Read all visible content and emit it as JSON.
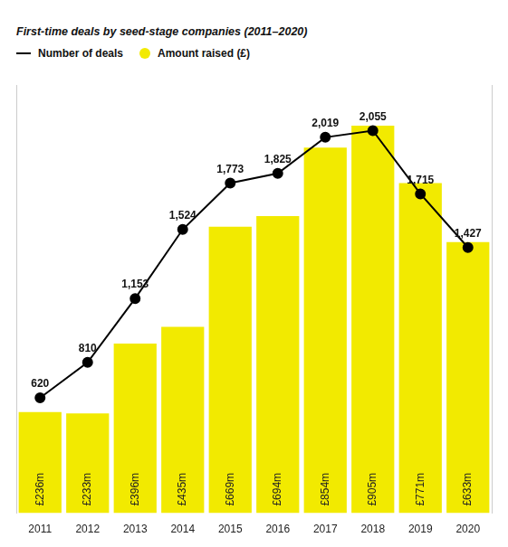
{
  "chart_data": {
    "type": "bar",
    "title": "First-time deals by seed-stage companies (2011–2020)",
    "categories": [
      "2011",
      "2012",
      "2013",
      "2014",
      "2015",
      "2016",
      "2017",
      "2018",
      "2019",
      "2020"
    ],
    "series": [
      {
        "name": "Number of deals",
        "type": "line",
        "color": "#000000",
        "marker": "circle",
        "axis": "y2",
        "values": [
          620,
          810,
          1153,
          1524,
          1773,
          1825,
          2019,
          2055,
          1715,
          1427
        ],
        "value_labels": [
          "620",
          "810",
          "1,153",
          "1,524",
          "1,773",
          "1,825",
          "2,019",
          "2,055",
          "1,715",
          "1,427"
        ]
      },
      {
        "name": "Amount raised (£)",
        "type": "bar",
        "color": "#f2ea00",
        "values": [
          236,
          233,
          396,
          435,
          669,
          694,
          854,
          905,
          771,
          633
        ],
        "value_labels": [
          "£236m",
          "£233m",
          "£396m",
          "£435m",
          "£669m",
          "£694m",
          "£854m",
          "£905m",
          "£771m",
          "£633m"
        ]
      }
    ],
    "ylim": [
      0,
      1000
    ],
    "y2lim": [
      0,
      2300
    ],
    "grid": false,
    "legend": "top-left",
    "data_labels": true,
    "tick_labels": "x"
  }
}
